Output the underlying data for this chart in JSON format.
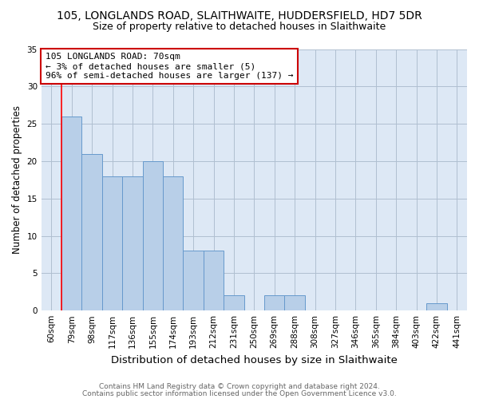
{
  "title_line1": "105, LONGLANDS ROAD, SLAITHWAITE, HUDDERSFIELD, HD7 5DR",
  "title_line2": "Size of property relative to detached houses in Slaithwaite",
  "xlabel": "Distribution of detached houses by size in Slaithwaite",
  "ylabel": "Number of detached properties",
  "categories": [
    "60sqm",
    "79sqm",
    "98sqm",
    "117sqm",
    "136sqm",
    "155sqm",
    "174sqm",
    "193sqm",
    "212sqm",
    "231sqm",
    "250sqm",
    "269sqm",
    "288sqm",
    "308sqm",
    "327sqm",
    "346sqm",
    "365sqm",
    "384sqm",
    "403sqm",
    "422sqm",
    "441sqm"
  ],
  "values": [
    0,
    26,
    21,
    18,
    18,
    20,
    18,
    8,
    8,
    2,
    0,
    2,
    2,
    0,
    0,
    0,
    0,
    0,
    0,
    1,
    0
  ],
  "bar_color": "#b8cfe8",
  "bar_edge_color": "#6699cc",
  "red_line_x": 0.5,
  "ylim": [
    0,
    35
  ],
  "yticks": [
    0,
    5,
    10,
    15,
    20,
    25,
    30,
    35
  ],
  "annotation_text": "105 LONGLANDS ROAD: 70sqm\n← 3% of detached houses are smaller (5)\n96% of semi-detached houses are larger (137) →",
  "annotation_box_color": "#ffffff",
  "annotation_box_edge_color": "#cc0000",
  "footer_line1": "Contains HM Land Registry data © Crown copyright and database right 2024.",
  "footer_line2": "Contains public sector information licensed under the Open Government Licence v3.0.",
  "background_color": "#ffffff",
  "axes_bg_color": "#dde8f5",
  "grid_color": "#b0bfd0",
  "title1_fontsize": 10,
  "title2_fontsize": 9,
  "xlabel_fontsize": 9.5,
  "ylabel_fontsize": 8.5,
  "tick_fontsize": 7.5,
  "annotation_fontsize": 8,
  "footer_fontsize": 6.5
}
